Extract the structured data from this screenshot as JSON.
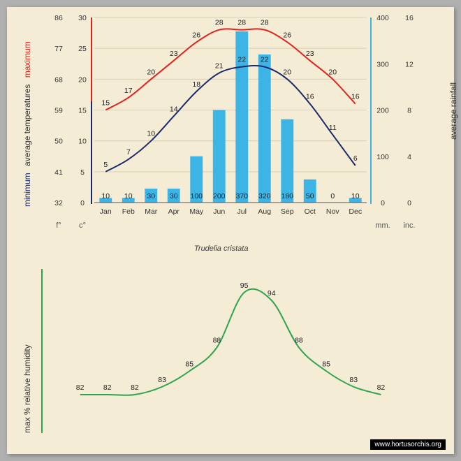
{
  "caption": "Trudelia cristata",
  "watermark": "www.hortusorchis.org",
  "months": [
    "Jan",
    "Feb",
    "Mar",
    "Apr",
    "May",
    "Jun",
    "Jul",
    "Aug",
    "Sep",
    "Oct",
    "Nov",
    "Dec"
  ],
  "temp_chart": {
    "c_ticks": [
      0,
      5,
      10,
      15,
      20,
      25,
      30
    ],
    "f_ticks": [
      32,
      41,
      50,
      59,
      68,
      77,
      86
    ],
    "mm_ticks": [
      0,
      100,
      200,
      300,
      400
    ],
    "inc_ticks": [
      0,
      4,
      8,
      12,
      16
    ],
    "c_min": 0,
    "c_max": 30,
    "mm_min": 0,
    "mm_max": 400,
    "max_line": {
      "values": [
        15,
        17,
        20,
        23,
        26,
        28,
        28,
        28,
        26,
        23,
        20,
        16
      ],
      "color": "#e2231a",
      "width": 2
    },
    "min_line": {
      "values": [
        5,
        7,
        10,
        14,
        18,
        21,
        22,
        22,
        20,
        16,
        11,
        6
      ],
      "color": "#1b2a6b",
      "width": 2
    },
    "rainfall": {
      "values": [
        10,
        10,
        30,
        30,
        100,
        200,
        370,
        320,
        180,
        50,
        0,
        10
      ],
      "color": "#3cb4e5"
    },
    "axis_left1_color": "#e2231a",
    "axis_left2_color": "#1b2a6b",
    "axis_right_color": "#3cb4e5",
    "background": "#f5ecd6",
    "grid_color": "#d8ceb2",
    "font_size": 10.5,
    "unit_left1": "f°",
    "unit_left2": "c°",
    "unit_right1": "mm.",
    "unit_right2": "inc."
  },
  "labels_left": {
    "minimum": {
      "text": "minimum",
      "color": "#1b2a6b"
    },
    "average_temperatures": {
      "text": "average  temperatures",
      "color": "#333"
    },
    "maximum": {
      "text": "maximum",
      "color": "#e2231a"
    }
  },
  "label_right_rainfall": {
    "text": "average rainfall",
    "color": "#333"
  },
  "humidity_chart": {
    "values": [
      82,
      82,
      82,
      83,
      85,
      88,
      95,
      94,
      88,
      85,
      83,
      82
    ],
    "color": "#2da44e",
    "width": 2,
    "ymin": 78,
    "ymax": 98,
    "label_color": "#333",
    "font_size": 10.5
  },
  "label_humidity": {
    "text": "max  %  relative  humidity",
    "color": "#333"
  },
  "axis_humidity_color": "#2da44e"
}
